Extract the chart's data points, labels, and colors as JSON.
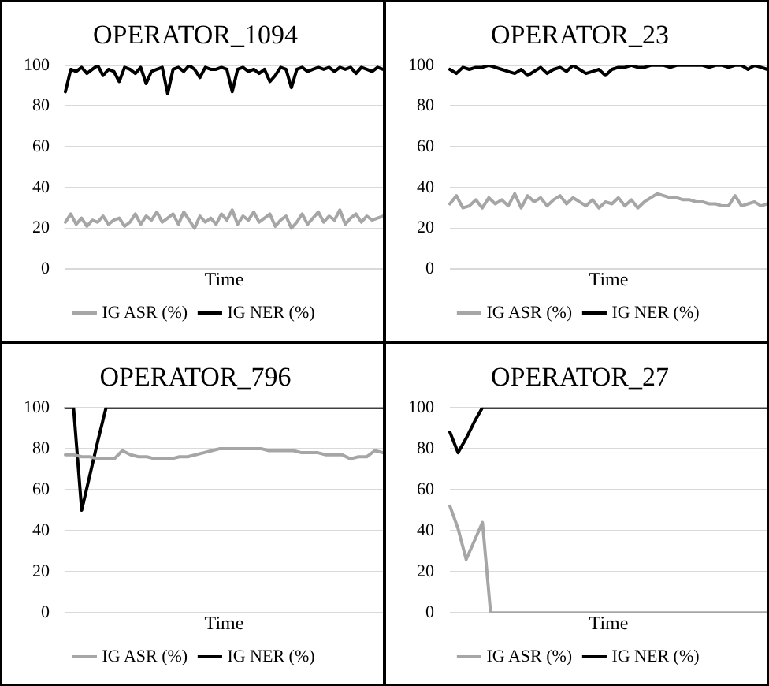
{
  "chart_data": [
    {
      "type": "line",
      "title": "OPERATOR_1094",
      "xlabel": "Time",
      "categories": [
        null,
        null,
        null,
        null,
        null,
        null,
        null,
        null,
        null,
        null,
        null,
        null,
        null,
        null,
        null,
        null,
        null,
        null,
        null,
        null,
        null,
        null,
        null,
        null,
        null,
        null,
        null,
        null,
        null,
        null,
        null,
        null,
        null,
        null,
        null,
        null,
        null,
        null,
        null,
        null,
        null,
        null,
        null,
        null,
        null,
        null,
        null,
        null,
        null,
        null,
        null,
        null,
        null,
        null,
        null,
        null,
        null,
        null,
        null,
        null
      ],
      "ylim": [
        0,
        100
      ],
      "yticks": [
        0,
        20,
        40,
        60,
        80,
        100
      ],
      "grid": "y",
      "legend": "bottom",
      "tick_labels": "y",
      "marker": "none",
      "line_style": "solid",
      "series": [
        {
          "name": "IG ASR (%)",
          "color": "#a6a6a6",
          "values": [
            23,
            27,
            22,
            25,
            21,
            24,
            23,
            26,
            22,
            24,
            25,
            21,
            23,
            27,
            22,
            26,
            24,
            28,
            23,
            25,
            27,
            22,
            28,
            24,
            20,
            26,
            23,
            25,
            22,
            27,
            24,
            29,
            22,
            26,
            24,
            28,
            23,
            25,
            27,
            21,
            24,
            26,
            20,
            23,
            27,
            22,
            25,
            28,
            23,
            26,
            24,
            29,
            22,
            25,
            27,
            23,
            26,
            24,
            25,
            26
          ]
        },
        {
          "name": "IG NER (%)",
          "color": "#000000",
          "values": [
            87,
            98,
            97,
            99,
            96,
            98,
            100,
            95,
            98,
            97,
            92,
            99,
            98,
            96,
            99,
            91,
            97,
            98,
            99,
            86,
            98,
            99,
            97,
            100,
            98,
            94,
            99,
            98,
            98,
            99,
            98,
            87,
            98,
            99,
            97,
            98,
            96,
            98,
            92,
            95,
            99,
            98,
            89,
            98,
            99,
            97,
            98,
            99,
            98,
            99,
            97,
            99,
            98,
            99,
            96,
            99,
            98,
            97,
            99,
            98
          ]
        }
      ]
    },
    {
      "type": "line",
      "title": "OPERATOR_23",
      "xlabel": "Time",
      "categories": [
        null,
        null,
        null,
        null,
        null,
        null,
        null,
        null,
        null,
        null,
        null,
        null,
        null,
        null,
        null,
        null,
        null,
        null,
        null,
        null,
        null,
        null,
        null,
        null,
        null,
        null,
        null,
        null,
        null,
        null,
        null,
        null,
        null,
        null,
        null,
        null,
        null,
        null,
        null,
        null,
        null,
        null,
        null,
        null,
        null,
        null,
        null,
        null,
        null,
        null
      ],
      "ylim": [
        0,
        100
      ],
      "yticks": [
        0,
        20,
        40,
        60,
        80,
        100
      ],
      "grid": "y",
      "legend": "bottom",
      "tick_labels": "y",
      "marker": "none",
      "line_style": "solid",
      "series": [
        {
          "name": "IG ASR (%)",
          "color": "#a6a6a6",
          "values": [
            32,
            36,
            30,
            31,
            34,
            30,
            35,
            32,
            34,
            31,
            37,
            30,
            36,
            33,
            35,
            31,
            34,
            36,
            32,
            35,
            33,
            31,
            34,
            30,
            33,
            32,
            35,
            31,
            34,
            30,
            33,
            35,
            37,
            36,
            35,
            35,
            34,
            34,
            33,
            33,
            32,
            32,
            31,
            31,
            36,
            31,
            32,
            33,
            31,
            32
          ]
        },
        {
          "name": "IG NER (%)",
          "color": "#000000",
          "values": [
            98,
            96,
            99,
            98,
            99,
            99,
            100,
            99,
            98,
            97,
            96,
            98,
            95,
            97,
            99,
            96,
            98,
            99,
            97,
            100,
            98,
            96,
            97,
            98,
            95,
            98,
            99,
            99,
            100,
            99,
            99,
            100,
            100,
            100,
            99,
            100,
            100,
            100,
            100,
            100,
            99,
            100,
            100,
            99,
            100,
            100,
            98,
            100,
            99,
            98
          ]
        }
      ]
    },
    {
      "type": "line",
      "title": "OPERATOR_796",
      "xlabel": "Time",
      "categories": [
        null,
        null,
        null,
        null,
        null,
        null,
        null,
        null,
        null,
        null,
        null,
        null,
        null,
        null,
        null,
        null,
        null,
        null,
        null,
        null,
        null,
        null,
        null,
        null,
        null,
        null,
        null,
        null,
        null,
        null,
        null,
        null,
        null,
        null,
        null,
        null,
        null,
        null,
        null,
        null
      ],
      "ylim": [
        0,
        100
      ],
      "yticks": [
        0,
        20,
        40,
        60,
        80,
        100
      ],
      "grid": "y",
      "legend": "bottom",
      "tick_labels": "y",
      "marker": "none",
      "line_style": "solid",
      "series": [
        {
          "name": "IG ASR (%)",
          "color": "#a6a6a6",
          "values": [
            77,
            77,
            76,
            76,
            75,
            75,
            75,
            79,
            77,
            76,
            76,
            75,
            75,
            75,
            76,
            76,
            77,
            78,
            79,
            80,
            80,
            80,
            80,
            80,
            80,
            79,
            79,
            79,
            79,
            78,
            78,
            78,
            77,
            77,
            77,
            75,
            76,
            76,
            79,
            78
          ]
        },
        {
          "name": "IG NER (%)",
          "color": "#000000",
          "values": [
            100,
            100,
            50,
            67,
            84,
            100,
            100,
            100,
            100,
            100,
            100,
            100,
            100,
            100,
            100,
            100,
            100,
            100,
            100,
            100,
            100,
            100,
            100,
            100,
            100,
            100,
            100,
            100,
            100,
            100,
            100,
            100,
            100,
            100,
            100,
            100,
            100,
            100,
            100,
            100
          ]
        }
      ]
    },
    {
      "type": "line",
      "title": "OPERATOR_27",
      "xlabel": "Time",
      "categories": [
        null,
        null,
        null,
        null,
        null,
        null,
        null,
        null,
        null,
        null,
        null,
        null,
        null,
        null,
        null,
        null,
        null,
        null,
        null,
        null,
        null,
        null,
        null,
        null,
        null,
        null,
        null,
        null,
        null,
        null,
        null,
        null,
        null,
        null,
        null,
        null,
        null,
        null,
        null,
        null
      ],
      "ylim": [
        0,
        100
      ],
      "yticks": [
        0,
        20,
        40,
        60,
        80,
        100
      ],
      "grid": "y",
      "legend": "bottom",
      "tick_labels": "y",
      "marker": "none",
      "line_style": "solid",
      "series": [
        {
          "name": "IG ASR (%)",
          "color": "#a6a6a6",
          "values": [
            52,
            41,
            26,
            35,
            44,
            0,
            0,
            0,
            0,
            0,
            0,
            0,
            0,
            0,
            0,
            0,
            0,
            0,
            0,
            0,
            0,
            0,
            0,
            0,
            0,
            0,
            0,
            0,
            0,
            0,
            0,
            0,
            0,
            0,
            0,
            0,
            0,
            0,
            0,
            0
          ]
        },
        {
          "name": "IG NER (%)",
          "color": "#000000",
          "values": [
            88,
            78,
            85,
            93,
            100,
            100,
            100,
            100,
            100,
            100,
            100,
            100,
            100,
            100,
            100,
            100,
            100,
            100,
            100,
            100,
            100,
            100,
            100,
            100,
            100,
            100,
            100,
            100,
            100,
            100,
            100,
            100,
            100,
            100,
            100,
            100,
            100,
            100,
            100,
            100
          ]
        }
      ]
    }
  ]
}
